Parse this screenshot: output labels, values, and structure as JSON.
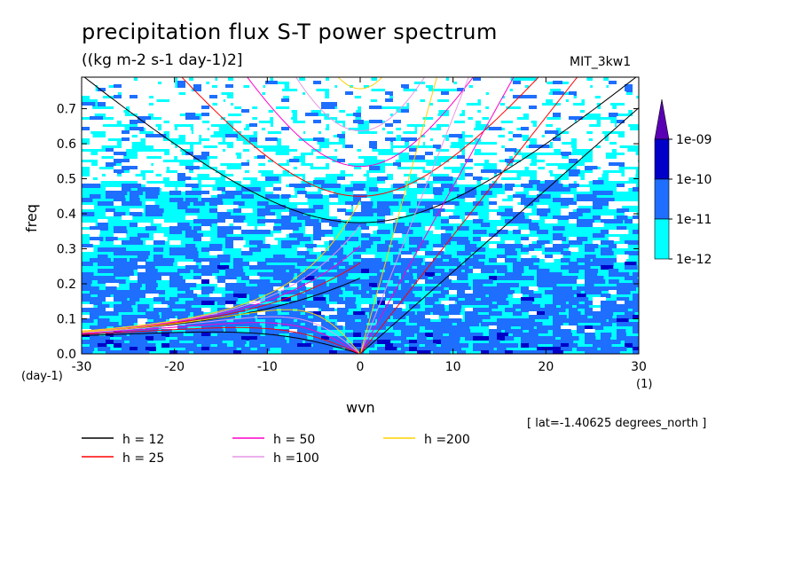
{
  "title": "precipitation flux S-T power spectrum",
  "subtitle": "((kg m-2 s-1 day-1)2]",
  "model_label": "MIT_3kw1",
  "lat_note": "[ lat=-1.40625 degrees_north ]",
  "colors": {
    "background": "#ffffff",
    "shade_1": "#00ffff",
    "shade_2": "#1e6eff",
    "shade_3": "#0000c8",
    "shade_4": "#5a00b4",
    "h12": "#000000",
    "h25": "#ff0000",
    "h50": "#ff00c8",
    "h100": "#e696e6",
    "h200": "#ffd200"
  },
  "chart_data": {
    "type": "heatmap",
    "xlabel": "wvn",
    "ylabel": "freq",
    "x_units": "(1)",
    "y_units": "(day-1)",
    "xlim": [
      -30,
      30
    ],
    "ylim": [
      0,
      0.79
    ],
    "x_ticks": [
      -30,
      -20,
      -10,
      0,
      10,
      20,
      30
    ],
    "y_ticks": [
      0.0,
      0.1,
      0.2,
      0.3,
      0.4,
      0.5,
      0.6,
      0.7
    ],
    "x_tick_labels": [
      "-30",
      "-20",
      "-10",
      "0",
      "10",
      "20",
      "30"
    ],
    "y_tick_labels": [
      "0.0",
      "0.1",
      "0.2",
      "0.3",
      "0.4",
      "0.5",
      "0.6",
      "0.7"
    ],
    "colorbar": {
      "levels": [
        "1e-12",
        "1e-11",
        "1e-10",
        "1e-09"
      ],
      "colors": [
        "#00ffff",
        "#1e6eff",
        "#0000c8",
        "#5a00b4"
      ],
      "extend": "max"
    },
    "dispersion_curves": [
      {
        "label": "h = 12",
        "h": 12,
        "color": "#000000"
      },
      {
        "label": "h = 25",
        "h": 25,
        "color": "#ff0000"
      },
      {
        "label": "h = 50",
        "h": 50,
        "color": "#ff00c8"
      },
      {
        "label": "h =100",
        "h": 100,
        "color": "#e696e6"
      },
      {
        "label": "h =200",
        "h": 200,
        "color": "#ffd200"
      }
    ]
  }
}
